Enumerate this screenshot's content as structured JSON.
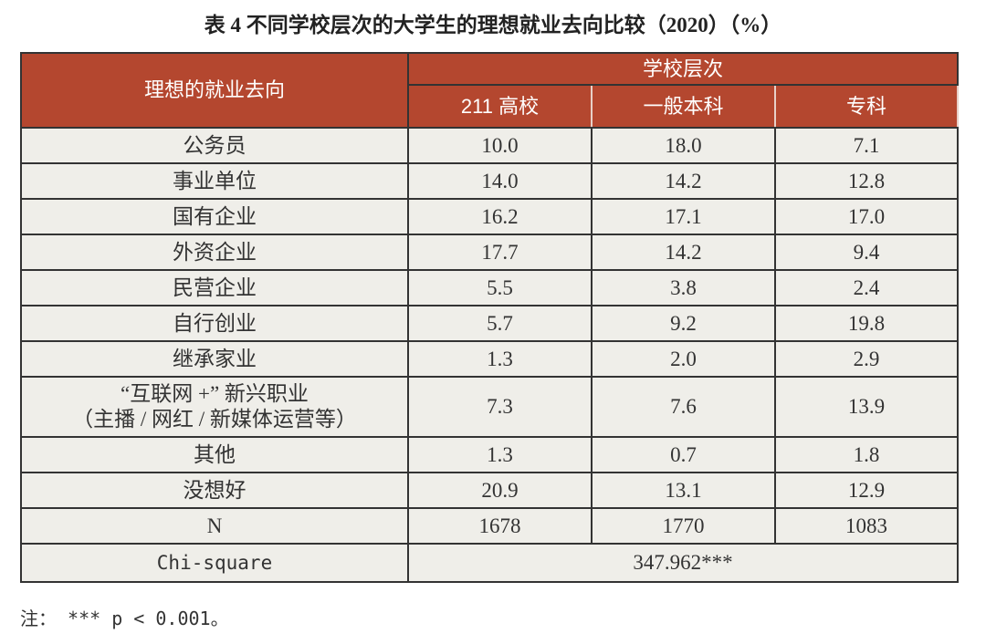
{
  "title": "表 4  不同学校层次的大学生的理想就业去向比较（2020）（%）",
  "table": {
    "header": {
      "row_label": "理想的就业去向",
      "group": "学校层次",
      "columns": [
        "211 高校",
        "一般本科",
        "专科"
      ]
    },
    "rows": [
      {
        "label": [
          "公务员"
        ],
        "cells": [
          "10.0",
          "18.0",
          "7.1"
        ]
      },
      {
        "label": [
          "事业单位"
        ],
        "cells": [
          "14.0",
          "14.2",
          "12.8"
        ]
      },
      {
        "label": [
          "国有企业"
        ],
        "cells": [
          "16.2",
          "17.1",
          "17.0"
        ]
      },
      {
        "label": [
          "外资企业"
        ],
        "cells": [
          "17.7",
          "14.2",
          "9.4"
        ]
      },
      {
        "label": [
          "民营企业"
        ],
        "cells": [
          "5.5",
          "3.8",
          "2.4"
        ]
      },
      {
        "label": [
          "自行创业"
        ],
        "cells": [
          "5.7",
          "9.2",
          "19.8"
        ]
      },
      {
        "label": [
          "继承家业"
        ],
        "cells": [
          "1.3",
          "2.0",
          "2.9"
        ]
      },
      {
        "label": [
          "“互联网 +” 新兴职业",
          "（主播 / 网红 / 新媒体运营等）"
        ],
        "cells": [
          "7.3",
          "7.6",
          "13.9"
        ]
      },
      {
        "label": [
          "其他"
        ],
        "cells": [
          "1.3",
          "0.7",
          "1.8"
        ]
      },
      {
        "label": [
          "没想好"
        ],
        "cells": [
          "20.9",
          "13.1",
          "12.9"
        ]
      },
      {
        "label": [
          "N"
        ],
        "cells": [
          "1678",
          "1770",
          "1083"
        ]
      }
    ],
    "chi_square": {
      "label": "Chi-square",
      "value": "347.962***"
    }
  },
  "note": "注： *** p < 0.001。"
}
